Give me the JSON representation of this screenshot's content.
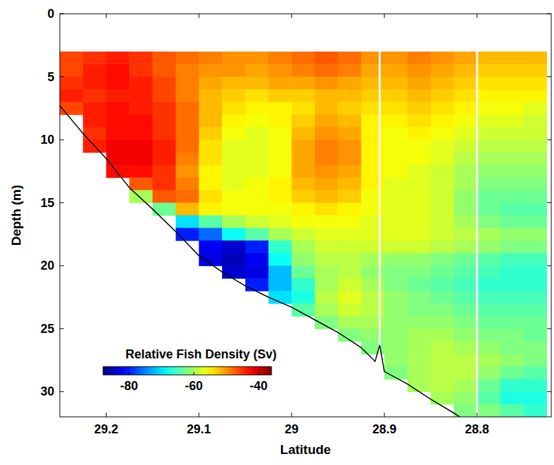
{
  "chart_data": {
    "type": "heatmap",
    "x_label": "Latitude",
    "y_label": "Depth (m)",
    "xlim": [
      29.25,
      28.72
    ],
    "xticks": [
      29.2,
      29.1,
      29,
      28.9,
      28.8
    ],
    "ylim": [
      0,
      32
    ],
    "yticks": [
      0,
      5,
      10,
      15,
      20,
      25,
      30
    ],
    "colorbar": {
      "label": "Relative Fish Density (Sv)",
      "range": [
        -88,
        -36
      ],
      "ticks": [
        -80,
        -60,
        -40
      ]
    },
    "cells": {
      "x_edges": [
        29.25,
        29.225,
        29.2,
        29.175,
        29.15,
        29.125,
        29.1,
        29.075,
        29.05,
        29.025,
        29,
        28.975,
        28.95,
        28.925,
        28.9,
        28.875,
        28.85,
        28.825,
        28.8,
        28.775,
        28.75,
        28.725
      ],
      "y_edges": [
        3,
        4,
        5,
        6,
        7,
        8,
        9,
        10,
        11,
        12,
        13,
        14,
        15,
        16,
        17,
        18,
        19,
        20,
        21,
        22,
        23,
        24,
        25,
        26,
        27,
        28,
        29,
        30,
        31,
        32
      ],
      "values": [
        [
          -46,
          -45,
          -44,
          -45,
          -47,
          -48,
          -49,
          -50,
          -50,
          -49,
          -48,
          -47,
          -48,
          -50,
          -50,
          -49,
          -50,
          -51,
          -52,
          -52,
          -52
        ],
        [
          -46,
          -44,
          -43,
          -45,
          -47,
          -49,
          -50,
          -50,
          -51,
          -50,
          -49,
          -48,
          -49,
          -51,
          -51,
          -50,
          -51,
          -52,
          -53,
          -53,
          -53
        ],
        [
          -45,
          -44,
          -43,
          -44,
          -46,
          -49,
          -51,
          -52,
          -52,
          -51,
          -51,
          -50,
          -51,
          -52,
          -52,
          -51,
          -52,
          -53,
          -54,
          -54,
          -54
        ],
        [
          -44,
          -45,
          -44,
          -44,
          -46,
          -49,
          -52,
          -53,
          -54,
          -53,
          -53,
          -52,
          -52,
          -53,
          -53,
          -52,
          -53,
          -54,
          -55,
          -55,
          -55
        ],
        [
          -46,
          -44,
          -43,
          -44,
          -45,
          -48,
          -52,
          -54,
          -55,
          -55,
          -54,
          -52,
          -53,
          -54,
          -54,
          -53,
          -54,
          -55,
          -56,
          -56,
          -57
        ],
        [
          null,
          -44,
          -43,
          -43,
          -45,
          -48,
          -52,
          -55,
          -56,
          -55,
          -53,
          -51,
          -52,
          -55,
          -55,
          -54,
          -55,
          -56,
          -57,
          -57,
          -58
        ],
        [
          null,
          -45,
          -43,
          -43,
          -45,
          -48,
          -53,
          -56,
          -57,
          -56,
          -52,
          -50,
          -51,
          -55,
          -56,
          -55,
          -56,
          -57,
          -58,
          -58,
          -58
        ],
        [
          null,
          -44,
          -42,
          -42,
          -44,
          -48,
          -54,
          -57,
          -57,
          -56,
          -51,
          -49,
          -50,
          -55,
          -56,
          -56,
          -57,
          -58,
          -59,
          -59,
          -59
        ],
        [
          null,
          null,
          -42,
          -42,
          -44,
          -49,
          -54,
          -57,
          -57,
          -56,
          -51,
          -49,
          -50,
          -55,
          -56,
          -56,
          -57,
          -59,
          -60,
          -60,
          -60
        ],
        [
          null,
          null,
          -43,
          -43,
          -45,
          -50,
          -55,
          -57,
          -57,
          -56,
          -51,
          -50,
          -51,
          -55,
          -56,
          -57,
          -58,
          -60,
          -61,
          -61,
          -61
        ],
        [
          null,
          null,
          null,
          -47,
          -45,
          -49,
          -55,
          -57,
          -56,
          -55,
          -52,
          -51,
          -52,
          -55,
          -57,
          -57,
          -58,
          -60,
          -62,
          -62,
          -62
        ],
        [
          null,
          null,
          null,
          -60,
          -47,
          -48,
          -54,
          -56,
          -56,
          -55,
          -53,
          -52,
          -53,
          -56,
          -57,
          -57,
          -58,
          -61,
          -63,
          -63,
          -63
        ],
        [
          null,
          null,
          null,
          null,
          -63,
          -52,
          -55,
          -56,
          -56,
          -56,
          -55,
          -54,
          -55,
          -56,
          -57,
          -57,
          -58,
          -61,
          -63,
          -64,
          -64
        ],
        [
          null,
          null,
          null,
          null,
          null,
          -70,
          -64,
          -60,
          -58,
          -57,
          -56,
          -56,
          -56,
          -57,
          -57,
          -57,
          -58,
          -60,
          -62,
          -63,
          -63
        ],
        [
          null,
          null,
          null,
          null,
          null,
          -80,
          -76,
          -68,
          -64,
          -60,
          -58,
          -57,
          -57,
          -57,
          -57,
          -57,
          -58,
          -59,
          -60,
          -61,
          -61
        ],
        [
          null,
          null,
          null,
          null,
          null,
          null,
          -82,
          -84,
          -80,
          -66,
          -60,
          -58,
          -58,
          -58,
          -58,
          -58,
          -59,
          -60,
          -61,
          -62,
          -62
        ],
        [
          null,
          null,
          null,
          null,
          null,
          null,
          -83,
          -85,
          -82,
          -68,
          -61,
          -59,
          -59,
          -60,
          -61,
          -61,
          -62,
          -63,
          -64,
          -65,
          -65
        ],
        [
          null,
          null,
          null,
          null,
          null,
          null,
          null,
          -84,
          -83,
          -72,
          -63,
          -60,
          -59,
          -61,
          -62,
          -62,
          -63,
          -64,
          -65,
          -66,
          -66
        ],
        [
          null,
          null,
          null,
          null,
          null,
          null,
          null,
          null,
          -80,
          -72,
          -66,
          -60,
          -58,
          -60,
          -62,
          -63,
          -64,
          -65,
          -66,
          -66,
          -66
        ],
        [
          null,
          null,
          null,
          null,
          null,
          null,
          null,
          null,
          null,
          -70,
          -67,
          -59,
          -57,
          -59,
          -61,
          -62,
          -63,
          -64,
          -65,
          -65,
          -65
        ],
        [
          null,
          null,
          null,
          null,
          null,
          null,
          null,
          null,
          null,
          null,
          -64,
          -60,
          -58,
          -59,
          -61,
          -62,
          -62,
          -63,
          -64,
          -64,
          -64
        ],
        [
          null,
          null,
          null,
          null,
          null,
          null,
          null,
          null,
          null,
          null,
          null,
          -62,
          -60,
          -60,
          -61,
          -61,
          -61,
          -62,
          -63,
          -63,
          -63
        ],
        [
          null,
          null,
          null,
          null,
          null,
          null,
          null,
          null,
          null,
          null,
          null,
          null,
          -62,
          -61,
          -61,
          -60,
          -60,
          -61,
          -62,
          -62,
          -63
        ],
        [
          null,
          null,
          null,
          null,
          null,
          null,
          null,
          null,
          null,
          null,
          null,
          null,
          null,
          -62,
          -61,
          -60,
          -59,
          -60,
          -61,
          -62,
          -62
        ],
        [
          null,
          null,
          null,
          null,
          null,
          null,
          null,
          null,
          null,
          null,
          null,
          null,
          null,
          null,
          -61,
          -60,
          -59,
          -59,
          -60,
          -61,
          -62
        ],
        [
          null,
          null,
          null,
          null,
          null,
          null,
          null,
          null,
          null,
          null,
          null,
          null,
          null,
          null,
          -62,
          -60,
          -59,
          -59,
          -61,
          -63,
          -64
        ],
        [
          null,
          null,
          null,
          null,
          null,
          null,
          null,
          null,
          null,
          null,
          null,
          null,
          null,
          null,
          null,
          -60,
          -59,
          -60,
          -63,
          -66,
          -66
        ],
        [
          null,
          null,
          null,
          null,
          null,
          null,
          null,
          null,
          null,
          null,
          null,
          null,
          null,
          null,
          null,
          null,
          -60,
          -61,
          -64,
          -67,
          -67
        ],
        [
          null,
          null,
          null,
          null,
          null,
          null,
          null,
          null,
          null,
          null,
          null,
          null,
          null,
          null,
          null,
          null,
          null,
          -62,
          -62,
          -64,
          -66
        ]
      ]
    },
    "gaps": [
      28.905,
      28.8
    ],
    "seafloor": {
      "x": [
        29.25,
        29.225,
        29.2,
        29.175,
        29.15,
        29.125,
        29.1,
        29.075,
        29.05,
        29.025,
        29,
        28.975,
        28.95,
        28.925,
        28.91,
        28.905,
        28.9,
        28.875,
        28.85,
        28.825,
        28.8
      ],
      "y": [
        7.3,
        9.5,
        11.5,
        13.8,
        15.5,
        17.3,
        19.2,
        20.5,
        21.6,
        22.5,
        23.3,
        24.3,
        25.3,
        26.5,
        27.6,
        26.3,
        28.4,
        29.4,
        30.6,
        31.7,
        32.9
      ],
      "color": "#000000"
    }
  }
}
